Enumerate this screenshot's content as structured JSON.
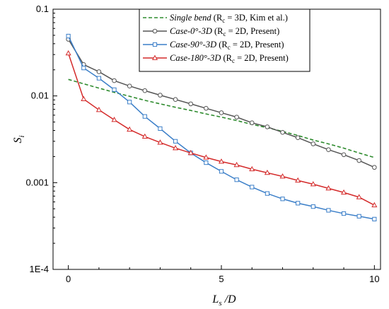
{
  "chart_data": {
    "type": "line",
    "xlabel_main": "L",
    "xlabel_sub": "s",
    "xlabel_tail": " /D",
    "ylabel_main": "S",
    "ylabel_sub": "i",
    "x_ticks": [
      "0",
      "5",
      "10"
    ],
    "x_tick_values": [
      0,
      5,
      10
    ],
    "y_ticks": [
      "0.1",
      "0.01",
      "0.001",
      "1E-4"
    ],
    "y_tick_values": [
      0.1,
      0.01,
      0.001,
      0.0001
    ],
    "xlim": [
      -0.5,
      10.2
    ],
    "ylim": [
      0.0001,
      0.1
    ],
    "y_scale": "log",
    "legend_position": "top-right",
    "series": [
      {
        "name": "Single bend",
        "legend_italic": "Single bend",
        "legend_rest": " (R",
        "legend_sub": "c",
        "legend_tail": " = 3D, Kim et al.)",
        "color": "#2e8b2e",
        "dash": "5,3",
        "marker": "none",
        "x": [
          0,
          0.5,
          1,
          1.5,
          2,
          2.5,
          3,
          3.5,
          4,
          4.5,
          5,
          5.5,
          6,
          6.5,
          7,
          7.5,
          8,
          8.5,
          9,
          9.5,
          10
        ],
        "y": [
          0.0155,
          0.0138,
          0.0123,
          0.011,
          0.0099,
          0.0089,
          0.0081,
          0.0074,
          0.0068,
          0.0062,
          0.0057,
          0.0052,
          0.0047,
          0.0043,
          0.0039,
          0.0035,
          0.0031,
          0.0028,
          0.0025,
          0.0022,
          0.00195
        ]
      },
      {
        "name": "Case-0°-3D",
        "legend_italic": "Case-0°-3D",
        "legend_rest": " (R",
        "legend_sub": "c",
        "legend_tail": " = 2D, Present)",
        "color": "#555555",
        "dash": "",
        "marker": "circle",
        "x": [
          0,
          0.5,
          1,
          1.5,
          2,
          2.5,
          3,
          3.5,
          4,
          4.5,
          5,
          5.5,
          6,
          6.5,
          7,
          7.5,
          8,
          8.5,
          9,
          9.5,
          10
        ],
        "y": [
          0.045,
          0.023,
          0.019,
          0.015,
          0.013,
          0.0115,
          0.0102,
          0.0091,
          0.0081,
          0.0072,
          0.0064,
          0.0057,
          0.0049,
          0.0044,
          0.0038,
          0.0033,
          0.0028,
          0.0024,
          0.0021,
          0.0018,
          0.0015
        ]
      },
      {
        "name": "Case-90°-3D",
        "legend_italic": "Case-90°-3D",
        "legend_rest": " (R",
        "legend_sub": "c",
        "legend_tail": " = 2D, Present)",
        "color": "#3a7ec8",
        "dash": "",
        "marker": "square",
        "x": [
          0,
          0.5,
          1,
          1.5,
          2,
          2.5,
          3,
          3.5,
          4,
          4.5,
          5,
          5.5,
          6,
          6.5,
          7,
          7.5,
          8,
          8.5,
          9,
          9.5,
          10
        ],
        "y": [
          0.049,
          0.021,
          0.016,
          0.0118,
          0.0085,
          0.0058,
          0.0042,
          0.003,
          0.0022,
          0.0017,
          0.00135,
          0.00108,
          0.00089,
          0.00075,
          0.00065,
          0.00058,
          0.00053,
          0.00048,
          0.00044,
          0.00041,
          0.00038
        ]
      },
      {
        "name": "Case-180°-3D",
        "legend_italic": "Case-180°-3D",
        "legend_rest": " (R",
        "legend_sub": "c",
        "legend_tail": " = 2D, Present)",
        "color": "#d42a2a",
        "dash": "",
        "marker": "triangle",
        "x": [
          0,
          0.5,
          1,
          1.5,
          2,
          2.5,
          3,
          3.5,
          4,
          4.5,
          5,
          5.5,
          6,
          6.5,
          7,
          7.5,
          8,
          8.5,
          9,
          9.5,
          10
        ],
        "y": [
          0.031,
          0.0092,
          0.0069,
          0.0053,
          0.0041,
          0.0034,
          0.0029,
          0.0025,
          0.0022,
          0.00195,
          0.00175,
          0.0016,
          0.00143,
          0.0013,
          0.00118,
          0.00106,
          0.00096,
          0.00086,
          0.00077,
          0.00068,
          0.00055
        ]
      }
    ]
  }
}
